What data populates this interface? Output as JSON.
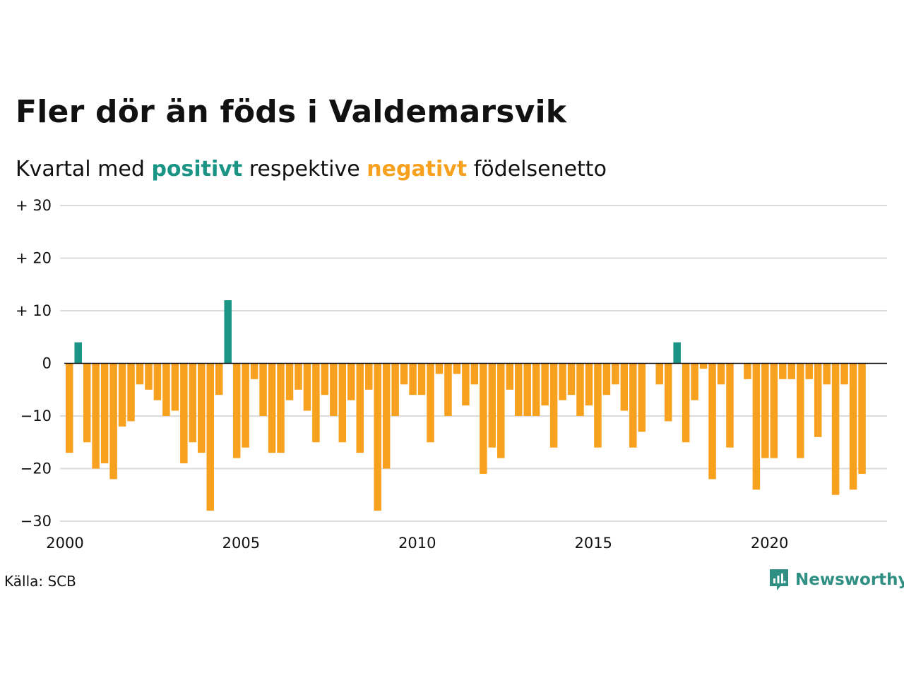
{
  "title": "Fler dör än föds i Valdemarsvik",
  "subtitle": {
    "prefix": "Kvartal med",
    "positive_word": "positivt",
    "middle": "respektive",
    "negative_word": "negativt",
    "suffix": "födelsenetto"
  },
  "source": "Källa: SCB",
  "brand": {
    "name": "Newsworthy",
    "icon": "newsworthy-logo-icon",
    "color": "#2f8f83"
  },
  "colors": {
    "positive": "#1a9485",
    "negative": "#f7a11e",
    "grid": "#dcdcdc",
    "zero_line": "#111111"
  },
  "chart_data": {
    "type": "bar",
    "x_start_year": 2000,
    "periods_per_year": 4,
    "ylim": [
      -30,
      30
    ],
    "grid": true,
    "y_ticks": [
      {
        "value": 30,
        "label": "+ 30"
      },
      {
        "value": 20,
        "label": "+ 20"
      },
      {
        "value": 10,
        "label": "+ 10"
      },
      {
        "value": 0,
        "label": "0"
      },
      {
        "value": -10,
        "label": "−10"
      },
      {
        "value": -20,
        "label": "−20"
      },
      {
        "value": -30,
        "label": "−30"
      }
    ],
    "x_ticks": [
      {
        "value": 2000,
        "label": "2000"
      },
      {
        "value": 2005,
        "label": "2005"
      },
      {
        "value": 2010,
        "label": "2010"
      },
      {
        "value": 2015,
        "label": "2015"
      },
      {
        "value": 2020,
        "label": "2020"
      }
    ],
    "values": [
      -17,
      4,
      -15,
      -20,
      -19,
      -22,
      -12,
      -11,
      -4,
      -5,
      -7,
      -10,
      -9,
      -19,
      -15,
      -17,
      -28,
      -6,
      12,
      -18,
      -16,
      -3,
      -10,
      -17,
      -17,
      -7,
      -5,
      -9,
      -15,
      -6,
      -10,
      -15,
      -7,
      -17,
      -5,
      -28,
      -20,
      -10,
      -4,
      -6,
      -6,
      -15,
      -2,
      -10,
      -2,
      -8,
      -4,
      -21,
      -16,
      -18,
      -5,
      -10,
      -10,
      -10,
      -8,
      -16,
      -7,
      -6,
      -10,
      -8,
      -16,
      -6,
      -4,
      -9,
      -16,
      -13,
      0,
      -4,
      -11,
      4,
      -15,
      -7,
      -1,
      -22,
      -4,
      -16,
      0,
      -3,
      -24,
      -18,
      -18,
      -3,
      -3,
      -18,
      -3,
      -14,
      -4,
      -25,
      -4,
      -24,
      -21
    ]
  }
}
